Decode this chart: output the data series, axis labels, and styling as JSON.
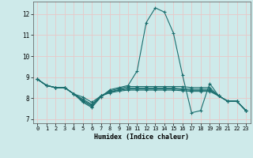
{
  "xlabel": "Humidex (Indice chaleur)",
  "xlim": [
    -0.5,
    23.5
  ],
  "ylim": [
    6.8,
    12.6
  ],
  "yticks": [
    7,
    8,
    9,
    10,
    11,
    12
  ],
  "xticks": [
    0,
    1,
    2,
    3,
    4,
    5,
    6,
    7,
    8,
    9,
    10,
    11,
    12,
    13,
    14,
    15,
    16,
    17,
    18,
    19,
    20,
    21,
    22,
    23
  ],
  "bg_color": "#ceeaea",
  "grid_color": "#e8c8c8",
  "line_color": "#1a6e6e",
  "marker_color": "#1a6e6e",
  "lines": [
    {
      "x": [
        0,
        1,
        2,
        3,
        4,
        5,
        6,
        7,
        8,
        9,
        10,
        11,
        12,
        13,
        14,
        15,
        16,
        17,
        18,
        19,
        20,
        21,
        22,
        23
      ],
      "y": [
        8.9,
        8.6,
        8.5,
        8.5,
        8.2,
        7.8,
        7.55,
        8.05,
        8.4,
        8.5,
        8.6,
        9.3,
        11.6,
        12.3,
        12.1,
        11.1,
        9.1,
        7.3,
        7.4,
        8.7,
        8.1,
        7.85,
        7.85,
        7.4
      ]
    },
    {
      "x": [
        0,
        1,
        2,
        3,
        4,
        5,
        6,
        7,
        8,
        9,
        10,
        11,
        12,
        13,
        14,
        15,
        16,
        17,
        18,
        19,
        20,
        21,
        22,
        23
      ],
      "y": [
        8.9,
        8.6,
        8.5,
        8.5,
        8.2,
        7.85,
        7.6,
        8.1,
        8.35,
        8.45,
        8.55,
        8.55,
        8.55,
        8.55,
        8.55,
        8.55,
        8.55,
        8.5,
        8.5,
        8.5,
        8.1,
        7.85,
        7.85,
        7.4
      ]
    },
    {
      "x": [
        0,
        1,
        2,
        3,
        4,
        5,
        6,
        7,
        8,
        9,
        10,
        11,
        12,
        13,
        14,
        15,
        16,
        17,
        18,
        19,
        20,
        21,
        22,
        23
      ],
      "y": [
        8.9,
        8.6,
        8.5,
        8.5,
        8.2,
        7.9,
        7.65,
        8.1,
        8.3,
        8.4,
        8.48,
        8.48,
        8.48,
        8.48,
        8.48,
        8.48,
        8.45,
        8.42,
        8.42,
        8.42,
        8.1,
        7.85,
        7.85,
        7.4
      ]
    },
    {
      "x": [
        0,
        1,
        2,
        3,
        4,
        5,
        6,
        7,
        8,
        9,
        10,
        11,
        12,
        13,
        14,
        15,
        16,
        17,
        18,
        19,
        20,
        21,
        22,
        23
      ],
      "y": [
        8.9,
        8.6,
        8.5,
        8.5,
        8.2,
        7.95,
        7.7,
        8.1,
        8.28,
        8.38,
        8.43,
        8.43,
        8.43,
        8.43,
        8.43,
        8.43,
        8.4,
        8.37,
        8.37,
        8.37,
        8.1,
        7.85,
        7.85,
        7.4
      ]
    },
    {
      "x": [
        0,
        1,
        2,
        3,
        4,
        5,
        6,
        7,
        8,
        9,
        10,
        11,
        12,
        13,
        14,
        15,
        16,
        17,
        18,
        19,
        20,
        21,
        22,
        23
      ],
      "y": [
        8.9,
        8.6,
        8.5,
        8.5,
        8.2,
        8.05,
        7.8,
        8.1,
        8.25,
        8.33,
        8.38,
        8.38,
        8.38,
        8.38,
        8.38,
        8.38,
        8.35,
        8.32,
        8.32,
        8.32,
        8.1,
        7.85,
        7.85,
        7.4
      ]
    }
  ]
}
